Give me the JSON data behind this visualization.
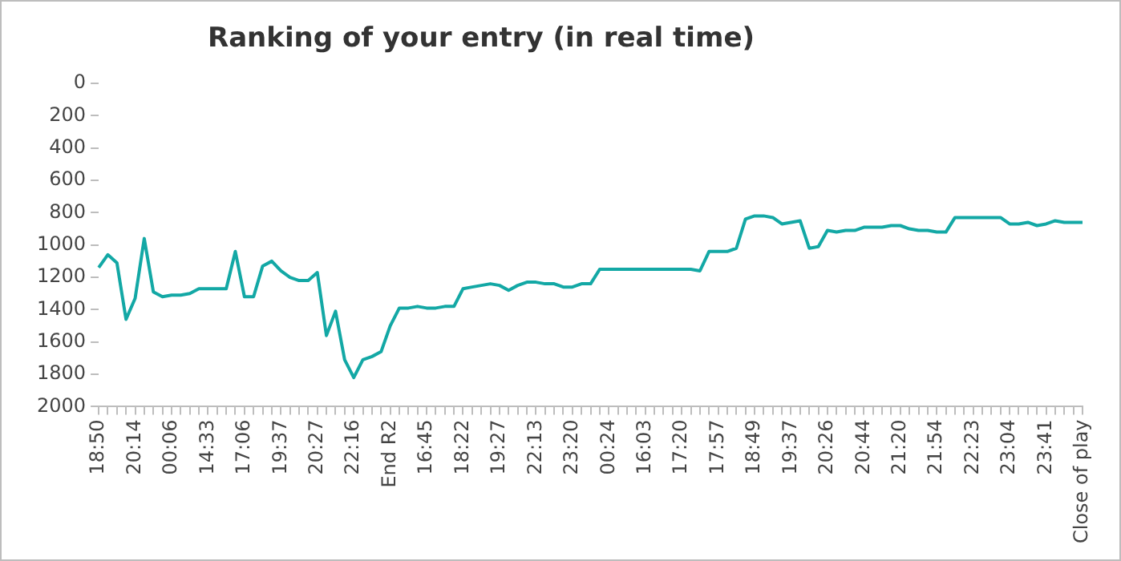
{
  "chart_data": {
    "type": "line",
    "title": "Ranking of your entry (in real time)",
    "categories": [
      "18:50",
      null,
      null,
      null,
      "20:14",
      null,
      null,
      null,
      "00:06",
      null,
      null,
      null,
      "14:33",
      null,
      null,
      null,
      "17:06",
      null,
      null,
      null,
      "19:37",
      null,
      null,
      null,
      "20:27",
      null,
      null,
      null,
      "22:16",
      null,
      null,
      null,
      "End R2",
      null,
      null,
      null,
      "16:45",
      null,
      null,
      null,
      "18:22",
      null,
      null,
      null,
      "19:27",
      null,
      null,
      null,
      "22:13",
      null,
      null,
      null,
      "23:20",
      null,
      null,
      null,
      "00:24",
      null,
      null,
      null,
      "16:03",
      null,
      null,
      null,
      "17:20",
      null,
      null,
      null,
      "17:57",
      null,
      null,
      null,
      "18:49",
      null,
      null,
      null,
      "19:37",
      null,
      null,
      null,
      "20:26",
      null,
      null,
      null,
      "20:44",
      null,
      null,
      null,
      "21:20",
      null,
      null,
      null,
      "21:54",
      null,
      null,
      null,
      "22:23",
      null,
      null,
      null,
      "23:04",
      null,
      null,
      null,
      "23:41",
      null,
      null,
      null,
      "Close of play"
    ],
    "series": [
      {
        "color": "#13a8a5",
        "values": [
          1140,
          1060,
          1110,
          1460,
          1330,
          960,
          1290,
          1320,
          1310,
          1310,
          1300,
          1270,
          1270,
          1270,
          1270,
          1040,
          1320,
          1320,
          1130,
          1100,
          1160,
          1200,
          1220,
          1220,
          1170,
          1560,
          1410,
          1710,
          1820,
          1710,
          1690,
          1660,
          1500,
          1390,
          1390,
          1380,
          1390,
          1390,
          1380,
          1380,
          1270,
          1260,
          1250,
          1240,
          1250,
          1280,
          1250,
          1230,
          1230,
          1240,
          1240,
          1260,
          1260,
          1240,
          1240,
          1150,
          1150,
          1150,
          1150,
          1150,
          1150,
          1150,
          1150,
          1150,
          1150,
          1150,
          1160,
          1040,
          1040,
          1040,
          1020,
          840,
          820,
          820,
          830,
          870,
          860,
          850,
          1020,
          1010,
          910,
          920,
          910,
          910,
          890,
          890,
          890,
          880,
          880,
          900,
          910,
          910,
          920,
          920,
          830,
          830,
          830,
          830,
          830,
          830,
          870,
          870,
          860,
          880,
          870,
          850,
          860,
          860,
          860
        ]
      }
    ],
    "ylim": [
      2000,
      0
    ],
    "yticks": [
      0,
      200,
      400,
      600,
      800,
      1000,
      1200,
      1400,
      1600,
      1800,
      2000
    ],
    "grid": false,
    "legend": false,
    "marker": "none",
    "line_style": "solid"
  }
}
